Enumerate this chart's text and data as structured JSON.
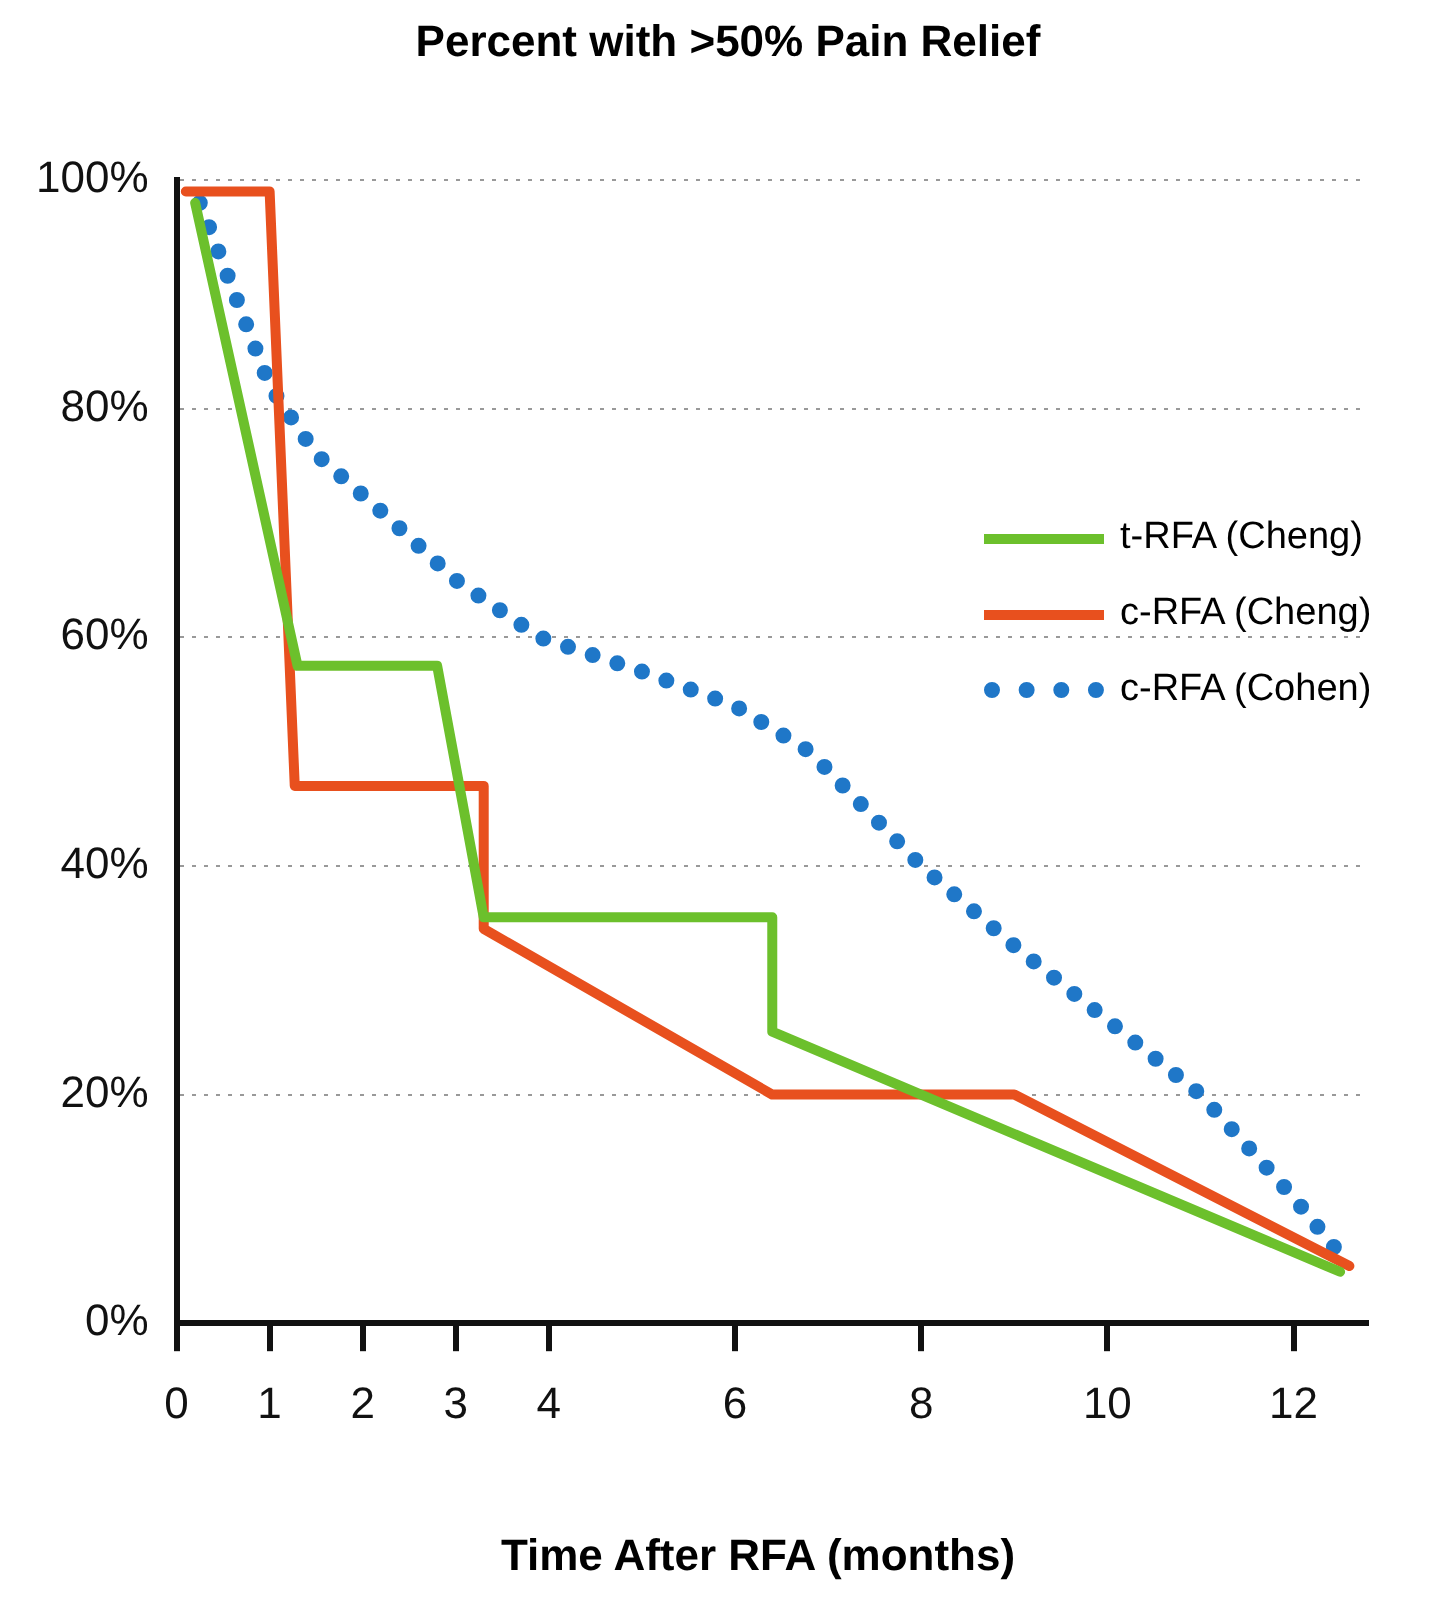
{
  "chart_data": {
    "type": "line",
    "title": "Percent with >50% Pain Relief",
    "xlabel": "Time After RFA (months)",
    "xlim": [
      0,
      12.8
    ],
    "xticks": [
      0,
      1,
      2,
      3,
      4,
      6,
      8,
      10,
      12
    ],
    "ylim": [
      0,
      100
    ],
    "yticks": [
      {
        "value": 0,
        "label": "0%"
      },
      {
        "value": 20,
        "label": "20%"
      },
      {
        "value": 40,
        "label": "40%"
      },
      {
        "value": 60,
        "label": "60%"
      },
      {
        "value": 80,
        "label": "80%"
      },
      {
        "value": 100,
        "label": "100%"
      }
    ],
    "grid": "y",
    "legend": "right",
    "marker": "none",
    "series": [
      {
        "name": "t-RFA (Cheng)",
        "color": "#6cc02c",
        "line_style": "solid",
        "x": [
          0.2,
          1.3,
          2.8,
          3.3,
          6.4,
          6.4,
          12.5
        ],
        "values": [
          98,
          57.5,
          57.5,
          35.5,
          35.5,
          25.5,
          4.5
        ]
      },
      {
        "name": "c-RFA (Cheng)",
        "color": "#e8501e",
        "line_style": "solid",
        "x": [
          0.1,
          1.0,
          1.27,
          3.3,
          3.3,
          6.4,
          9.0,
          12.6
        ],
        "values": [
          99,
          99,
          47,
          47,
          34.5,
          20,
          20,
          5
        ]
      },
      {
        "name": "c-RFA (Cohen)",
        "color": "#1f77c8",
        "line_style": "dotted",
        "x": [
          0.25,
          1,
          1.5,
          2.2,
          3,
          3.9,
          5,
          6,
          6.8,
          8,
          9,
          10,
          11,
          12,
          12.6
        ],
        "values": [
          98,
          82,
          76,
          71,
          65,
          60,
          57,
          54,
          50,
          40,
          33,
          26.5,
          20,
          11,
          5
        ]
      }
    ]
  }
}
